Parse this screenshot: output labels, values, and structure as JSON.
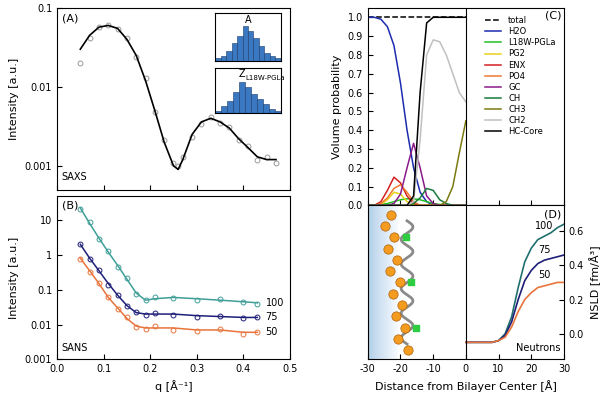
{
  "chart_data": [
    {
      "type": "scatter_line",
      "panel": "(A)",
      "annotation": "SAXS",
      "ylabel": "Intensity [a.u.]",
      "log": "y",
      "xlim": [
        0.0,
        0.5
      ],
      "xticks": [
        0.0,
        0.1,
        0.2,
        0.3,
        0.4,
        0.5
      ],
      "ylim": [
        0.0005,
        0.1
      ],
      "yticks": [
        0.001,
        0.01,
        0.1
      ],
      "tick_labels": "y",
      "x": [
        0.05,
        0.07,
        0.09,
        0.11,
        0.13,
        0.15,
        0.17,
        0.19,
        0.21,
        0.23,
        0.25,
        0.26,
        0.27,
        0.29,
        0.31,
        0.33,
        0.35,
        0.37,
        0.39,
        0.41,
        0.43,
        0.45,
        0.47
      ],
      "series": [
        {
          "type": "scatter",
          "marker": "circle",
          "color": "#9a9a9a",
          "values": [
            0.02,
            0.042,
            0.058,
            0.061,
            0.054,
            0.041,
            0.024,
            0.013,
            0.0048,
            0.0021,
            0.0011,
            0.001,
            0.0013,
            0.0023,
            0.0034,
            0.0042,
            0.0035,
            0.0031,
            0.0021,
            0.0018,
            0.0012,
            0.0013,
            0.0011
          ]
        },
        {
          "type": "line",
          "line_style": "solid",
          "color": "#000000",
          "values": [
            0.03,
            0.045,
            0.057,
            0.06,
            0.055,
            0.04,
            0.025,
            0.012,
            0.005,
            0.002,
            0.001,
            0.0009,
            0.0012,
            0.0025,
            0.0036,
            0.004,
            0.0036,
            0.003,
            0.0022,
            0.0017,
            0.0013,
            0.0012,
            0.0012
          ]
        }
      ],
      "insets": [
        {
          "type": "histogram",
          "label": "A",
          "color": "#3a78c2",
          "tick_labels": false,
          "bins": [
            0,
            1,
            2,
            3,
            4,
            5,
            6,
            7,
            8,
            9,
            10,
            11,
            12
          ],
          "counts": [
            1,
            2,
            4,
            7,
            10,
            14,
            12,
            9,
            6,
            3,
            2,
            1
          ],
          "ylim": [
            0,
            19
          ]
        },
        {
          "type": "histogram",
          "label": "Z",
          "label_subscript": "L18W-PGLa",
          "color": "#3a78c2",
          "tick_labels": false,
          "bins": [
            0,
            1,
            2,
            3,
            4,
            5,
            6,
            7,
            8,
            9,
            10,
            11
          ],
          "counts": [
            1,
            3,
            5,
            9,
            13,
            11,
            8,
            6,
            4,
            2,
            1
          ],
          "ylim": [
            0,
            19
          ]
        }
      ]
    },
    {
      "type": "scatter_line",
      "panel": "(B)",
      "annotation": "SANS",
      "xlabel": "q [Å⁻¹]",
      "ylabel": "Intensity [a.u.]",
      "log": "y",
      "xlim": [
        0.0,
        0.5
      ],
      "xticks": [
        0.0,
        0.1,
        0.2,
        0.3,
        0.4,
        0.5
      ],
      "ylim": [
        0.001,
        50
      ],
      "yticks": [
        0.001,
        0.01,
        0.1,
        1,
        10
      ],
      "x": [
        0.05,
        0.07,
        0.09,
        0.11,
        0.13,
        0.15,
        0.17,
        0.19,
        0.21,
        0.25,
        0.3,
        0.35,
        0.4,
        0.43
      ],
      "series": [
        {
          "name": "100",
          "color": "#3f9e98",
          "marker": "circle",
          "values": [
            22,
            8,
            3,
            1.2,
            0.5,
            0.2,
            0.08,
            0.05,
            0.055,
            0.06,
            0.055,
            0.05,
            0.045,
            0.042
          ],
          "data_points": [
            20,
            8.5,
            2.8,
            1.3,
            0.45,
            0.22,
            0.075,
            0.052,
            0.06,
            0.058,
            0.05,
            0.053,
            0.043,
            0.04
          ]
        },
        {
          "name": "75",
          "color": "#1e1e78",
          "marker": "circle",
          "values": [
            2,
            0.8,
            0.35,
            0.15,
            0.07,
            0.035,
            0.022,
            0.02,
            0.02,
            0.02,
            0.018,
            0.017,
            0.016,
            0.016
          ],
          "data_points": [
            2.1,
            0.75,
            0.37,
            0.14,
            0.072,
            0.033,
            0.023,
            0.019,
            0.021,
            0.019,
            0.017,
            0.018,
            0.015,
            0.016
          ]
        },
        {
          "name": "50",
          "color": "#e8743b",
          "marker": "circle",
          "values": [
            0.8,
            0.35,
            0.15,
            0.06,
            0.03,
            0.015,
            0.009,
            0.008,
            0.008,
            0.008,
            0.007,
            0.007,
            0.006,
            0.006
          ],
          "data_points": [
            0.75,
            0.33,
            0.16,
            0.062,
            0.028,
            0.016,
            0.0085,
            0.0075,
            0.009,
            0.0072,
            0.0065,
            0.0075,
            0.0055,
            0.0062
          ]
        }
      ]
    },
    {
      "type": "line",
      "panel": "(C)",
      "ylabel": "Volume probability",
      "legend": "upper right",
      "xlim": [
        -30,
        30
      ],
      "xticks": [
        -30,
        -20,
        -10,
        0,
        10,
        20,
        30
      ],
      "ylim": [
        0.0,
        1.05
      ],
      "yticks": [
        0.0,
        0.1,
        0.2,
        0.3,
        0.4,
        0.5,
        0.6,
        0.7,
        0.8,
        0.9,
        1.0
      ],
      "tick_labels": "y",
      "x": [
        -30,
        -28,
        -26,
        -24,
        -22,
        -20,
        -18,
        -16,
        -14,
        -12,
        -10,
        -8,
        -6,
        -4,
        -2,
        0
      ],
      "series": [
        {
          "name": "total",
          "color": "#000000",
          "line_style": "dashed",
          "values": [
            1.0,
            1.0,
            1.0,
            1.0,
            1.0,
            1.0,
            1.0,
            1.0,
            1.0,
            1.0,
            1.0,
            1.0,
            1.0,
            1.0,
            1.0,
            1.0
          ]
        },
        {
          "name": "H2O",
          "color": "#1c2bb0",
          "values": [
            1.0,
            1.0,
            0.99,
            0.95,
            0.85,
            0.65,
            0.4,
            0.2,
            0.07,
            0.02,
            0,
            0,
            0,
            0,
            0,
            0
          ]
        },
        {
          "name": "L18W-PGLa",
          "color": "#22c022",
          "values": [
            0,
            0,
            0.005,
            0.01,
            0.02,
            0.03,
            0.035,
            0.035,
            0.03,
            0.02,
            0.01,
            0.005,
            0,
            0,
            0,
            0
          ]
        },
        {
          "name": "PG2",
          "color": "#e8d21a",
          "values": [
            0,
            0,
            0.005,
            0.03,
            0.07,
            0.06,
            0.02,
            0.005,
            0,
            0,
            0,
            0,
            0,
            0,
            0,
            0
          ]
        },
        {
          "name": "ENX",
          "color": "#d42020",
          "values": [
            0,
            0,
            0.02,
            0.08,
            0.15,
            0.12,
            0.05,
            0.01,
            0,
            0,
            0,
            0,
            0,
            0,
            0,
            0
          ]
        },
        {
          "name": "PO4",
          "color": "#f07830",
          "values": [
            0,
            0,
            0.01,
            0.04,
            0.09,
            0.11,
            0.07,
            0.02,
            0,
            0,
            0,
            0,
            0,
            0,
            0,
            0
          ]
        },
        {
          "name": "GC",
          "color": "#8a1a8a",
          "values": [
            0,
            0,
            0,
            0,
            0.01,
            0.06,
            0.2,
            0.33,
            0.2,
            0.05,
            0.01,
            0,
            0,
            0,
            0,
            0
          ]
        },
        {
          "name": "CH",
          "color": "#1a7a3a",
          "values": [
            0,
            0,
            0,
            0,
            0,
            0,
            0,
            0.01,
            0.04,
            0.09,
            0.08,
            0.03,
            0.01,
            0,
            0,
            0
          ]
        },
        {
          "name": "CH3",
          "color": "#7a7a10",
          "values": [
            0,
            0,
            0,
            0,
            0,
            0,
            0,
            0,
            0,
            0,
            0,
            0,
            0.02,
            0.1,
            0.28,
            0.45
          ]
        },
        {
          "name": "CH2",
          "color": "#c0c0c0",
          "values": [
            0,
            0,
            0,
            0,
            0,
            0,
            0,
            0.02,
            0.35,
            0.8,
            0.88,
            0.87,
            0.8,
            0.7,
            0.6,
            0.55
          ]
        },
        {
          "name": "HC-Core",
          "color": "#000000",
          "values": [
            0,
            0,
            0,
            0,
            0,
            0,
            0,
            0.05,
            0.6,
            0.97,
            1.0,
            1.0,
            1.0,
            1.0,
            1.0,
            1.0
          ]
        }
      ]
    },
    {
      "type": "line",
      "panel": "(D)",
      "annotation": "Neutrons",
      "xlabel": "Distance from Bilayer Center [Å]",
      "ylabel": "NSLD [fm/Å³]",
      "xlim": [
        -30,
        30
      ],
      "xticks": [
        -30,
        -20,
        -10,
        0,
        10,
        20,
        30
      ],
      "ylim": [
        -0.15,
        0.75
      ],
      "yticks": [
        0.0,
        0.2,
        0.4,
        0.6
      ],
      "x": [
        0,
        2,
        4,
        6,
        8,
        10,
        12,
        14,
        16,
        18,
        20,
        22,
        24,
        26,
        28,
        30
      ],
      "series": [
        {
          "name": "100",
          "color": "#1f6f6f",
          "values": [
            -0.05,
            -0.05,
            -0.05,
            -0.05,
            -0.05,
            -0.04,
            0.0,
            0.1,
            0.27,
            0.42,
            0.5,
            0.55,
            0.57,
            0.59,
            0.62,
            0.64
          ]
        },
        {
          "name": "75",
          "color": "#1e1e78",
          "values": [
            -0.05,
            -0.05,
            -0.05,
            -0.05,
            -0.05,
            -0.04,
            -0.01,
            0.07,
            0.2,
            0.31,
            0.37,
            0.41,
            0.43,
            0.44,
            0.45,
            0.46
          ]
        },
        {
          "name": "50",
          "color": "#e8743b",
          "values": [
            -0.05,
            -0.05,
            -0.05,
            -0.05,
            -0.05,
            -0.04,
            -0.02,
            0.04,
            0.13,
            0.2,
            0.24,
            0.27,
            0.28,
            0.29,
            0.3,
            0.3
          ]
        }
      ]
    }
  ]
}
